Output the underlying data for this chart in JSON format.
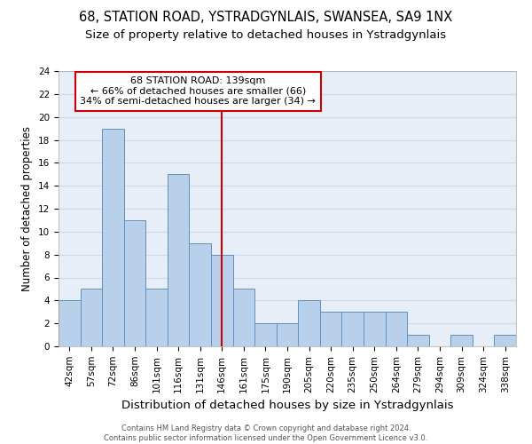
{
  "title1": "68, STATION ROAD, YSTRADGYNLAIS, SWANSEA, SA9 1NX",
  "title2": "Size of property relative to detached houses in Ystradgynlais",
  "xlabel": "Distribution of detached houses by size in Ystradgynlais",
  "ylabel": "Number of detached properties",
  "categories": [
    "42sqm",
    "57sqm",
    "72sqm",
    "86sqm",
    "101sqm",
    "116sqm",
    "131sqm",
    "146sqm",
    "161sqm",
    "175sqm",
    "190sqm",
    "205sqm",
    "220sqm",
    "235sqm",
    "250sqm",
    "264sqm",
    "279sqm",
    "294sqm",
    "309sqm",
    "324sqm",
    "338sqm"
  ],
  "values": [
    4,
    5,
    19,
    11,
    5,
    15,
    9,
    8,
    5,
    2,
    2,
    4,
    3,
    3,
    3,
    3,
    1,
    0,
    1,
    0,
    1
  ],
  "bar_color": "#b8d0ea",
  "bar_edge_color": "#6090c0",
  "vline_x": 7.0,
  "vline_color": "#cc0000",
  "annotation_text": "68 STATION ROAD: 139sqm\n← 66% of detached houses are smaller (66)\n34% of semi-detached houses are larger (34) →",
  "box_color": "#cc0000",
  "ylim": [
    0,
    24
  ],
  "yticks": [
    0,
    2,
    4,
    6,
    8,
    10,
    12,
    14,
    16,
    18,
    20,
    22,
    24
  ],
  "footnote": "Contains HM Land Registry data © Crown copyright and database right 2024.\nContains public sector information licensed under the Open Government Licence v3.0.",
  "title1_fontsize": 10.5,
  "title2_fontsize": 9.5,
  "xlabel_fontsize": 9.5,
  "ylabel_fontsize": 8.5,
  "tick_fontsize": 7.5,
  "annotation_fontsize": 8,
  "footnote_fontsize": 6.0,
  "grid_color": "#ccd8ec",
  "background_color": "#e8eef8"
}
